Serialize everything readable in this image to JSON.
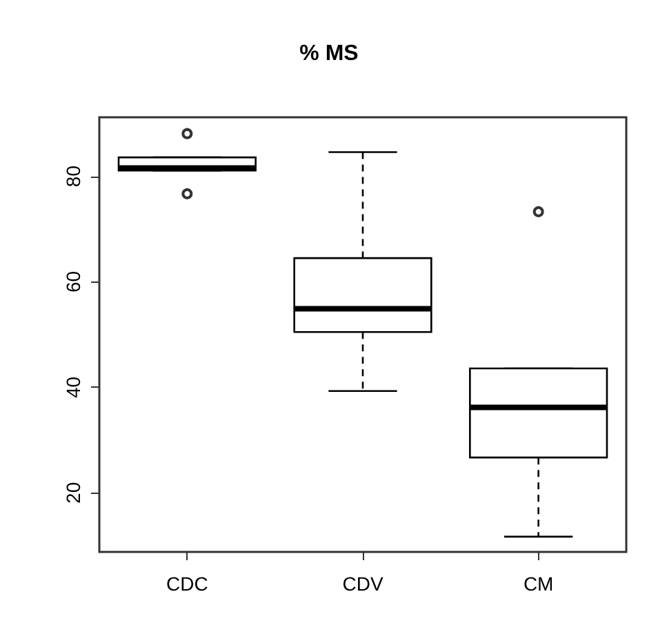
{
  "chart_data": {
    "type": "box",
    "title": "% MS",
    "categories": [
      "CDC",
      "CDV",
      "CM"
    ],
    "ylim": [
      8.8,
      91.2
    ],
    "yticks": [
      20,
      40,
      60,
      80
    ],
    "grid": false,
    "marker": "circle",
    "color": "#000000",
    "boxes": [
      {
        "low": 81.1,
        "q1": 81.1,
        "median": 81.6,
        "q3": 83.6,
        "high": 83.6,
        "outliers": [
          88.1,
          76.7
        ]
      },
      {
        "low": 39.3,
        "q1": 50.5,
        "median": 54.9,
        "q3": 64.5,
        "high": 84.6
      },
      {
        "low": 11.7,
        "q1": 26.7,
        "median": 36.2,
        "q3": 43.6,
        "high": 43.6,
        "outliers": [
          73.3
        ]
      }
    ]
  }
}
